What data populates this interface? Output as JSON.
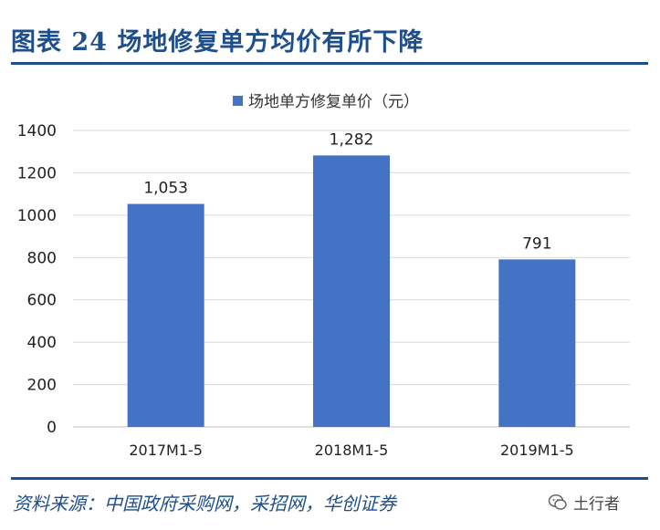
{
  "header": {
    "title": "图表 24   场地修复单方均价有所下降"
  },
  "chart_data": {
    "type": "bar",
    "categories": [
      "2017M1-5",
      "2018M1-5",
      "2019M1-5"
    ],
    "series": [
      {
        "name": "场地单方修复单价（元）",
        "values": [
          1053,
          1282,
          791
        ]
      }
    ],
    "data_labels": [
      "1,053",
      "1,282",
      "791"
    ],
    "ylim": [
      0,
      1400
    ],
    "yticks": [
      0,
      200,
      400,
      600,
      800,
      1000,
      1200,
      1400
    ],
    "grid": true,
    "legend_position": "top-center",
    "colors": {
      "bar": "#4472c4",
      "grid": "#d9d9d9"
    }
  },
  "footer": {
    "source": "资料来源：中国政府采购网，采招网，华创证券",
    "watermark": "土行者",
    "watermark_icon": "wechat-icon"
  }
}
